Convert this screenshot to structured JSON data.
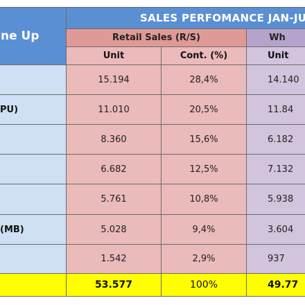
{
  "header": {
    "title": "SALES PERFOMANCE JAN-JU",
    "line_up": "ne Up",
    "retail_group": "Retail Sales (R/S)",
    "wholesale_group": "Wh",
    "col_unit": "Unit",
    "col_cont": "Cont. (%)",
    "col_unit_wholesale": "Unit"
  },
  "rows": [
    {
      "label": "",
      "retail_unit": "15.194",
      "retail_cont": "28,4%",
      "whole_unit": "14.140"
    },
    {
      "label": "PU)",
      "retail_unit": "11.010",
      "retail_cont": "20,5%",
      "whole_unit": "11.84"
    },
    {
      "label": "",
      "retail_unit": "8.360",
      "retail_cont": "15,6%",
      "whole_unit": "6.182"
    },
    {
      "label": "",
      "retail_unit": "6.682",
      "retail_cont": "12,5%",
      "whole_unit": "7.132"
    },
    {
      "label": "",
      "retail_unit": "5.761",
      "retail_cont": "10,8%",
      "whole_unit": "5.938"
    },
    {
      "label": "(MB)",
      "retail_unit": "5.028",
      "retail_cont": "9,4%",
      "whole_unit": "3.604"
    },
    {
      "label": "",
      "retail_unit": "1.542",
      "retail_cont": "2,9%",
      "whole_unit": "937"
    }
  ],
  "total": {
    "retail_unit": "53.577",
    "retail_cont": "100%",
    "whole_unit": "49.77"
  },
  "colors": {
    "header_blue": "#5b8fd4",
    "retail_header": "#e09a96",
    "retail_body": "#ebbaba",
    "wholesale_header": "#b6a3cc",
    "wholesale_body": "#d2c4dc",
    "label_body": "#cfe0f4",
    "total": "#ffff00"
  }
}
